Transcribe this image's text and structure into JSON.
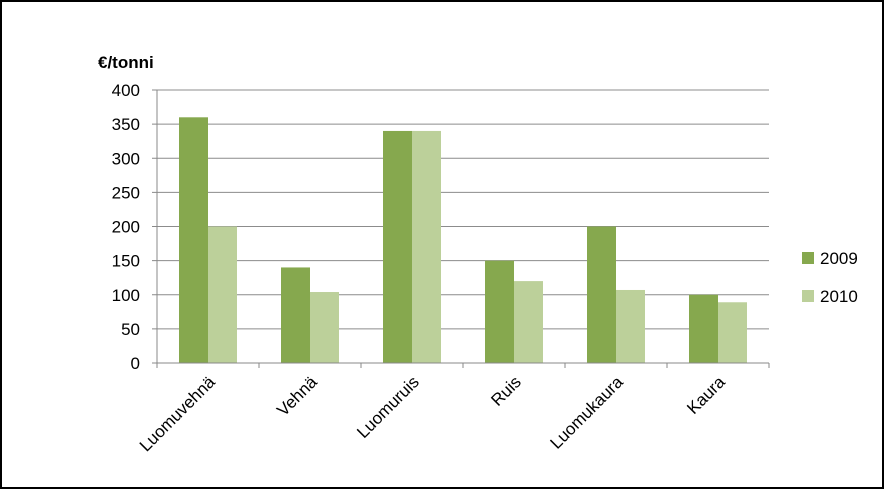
{
  "chart_data": {
    "type": "bar",
    "title": "",
    "ylabel": "€/tonni",
    "xlabel": "",
    "categories": [
      "Luomuvehnä",
      "Vehnä",
      "Luomuruis",
      "Ruis",
      "Luomukaura",
      "Kaura"
    ],
    "series": [
      {
        "name": "2009",
        "color": "#86A84E",
        "values": [
          360,
          140,
          340,
          150,
          200,
          100
        ]
      },
      {
        "name": "2010",
        "color": "#BCD09A",
        "values": [
          200,
          104,
          340,
          120,
          107,
          89
        ]
      }
    ],
    "ylim": [
      0,
      400
    ],
    "yticks": [
      "0",
      "50",
      "100",
      "150",
      "200",
      "250",
      "300",
      "350",
      "400"
    ],
    "grid": true,
    "legend_position": "right"
  }
}
